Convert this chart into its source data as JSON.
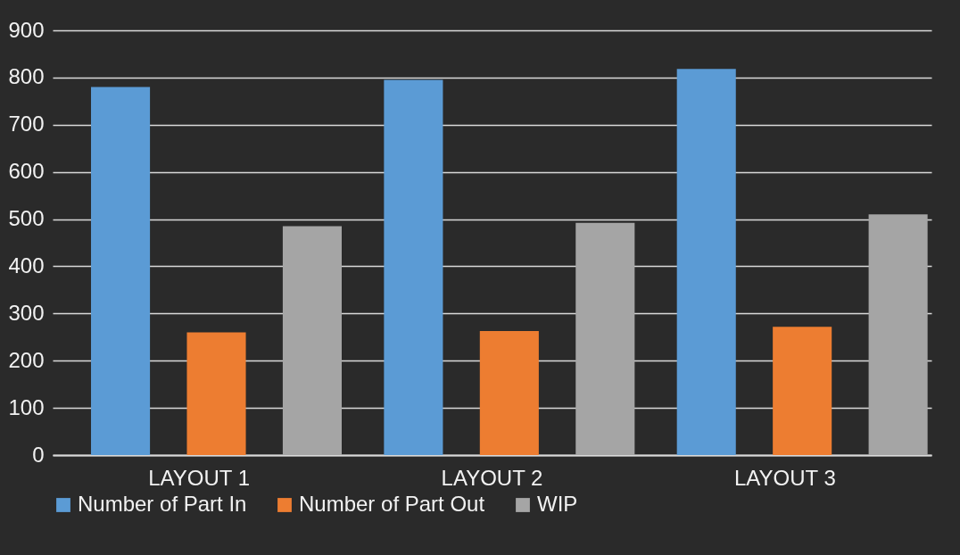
{
  "chart_data": {
    "type": "bar",
    "categories": [
      "LAYOUT 1",
      "LAYOUT 2",
      "LAYOUT 3"
    ],
    "series": [
      {
        "name": "Number of Part In",
        "color": "#5b9bd5",
        "values": [
          780,
          795,
          818
        ]
      },
      {
        "name": "Number of Part Out",
        "color": "#ed7d31",
        "values": [
          260,
          263,
          272
        ]
      },
      {
        "name": "WIP",
        "color": "#a5a5a5",
        "values": [
          485,
          492,
          510
        ]
      }
    ],
    "ylim": [
      0,
      900
    ],
    "yticks": [
      0,
      100,
      200,
      300,
      400,
      500,
      600,
      700,
      800,
      900
    ],
    "grid": "y",
    "legend": "bottom"
  }
}
